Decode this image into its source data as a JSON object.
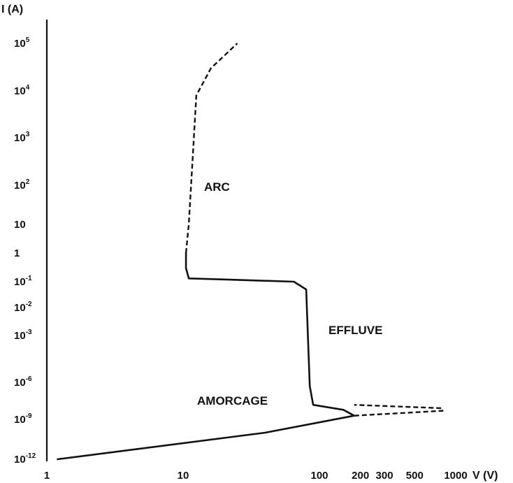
{
  "chart_data": {
    "type": "line",
    "title": "",
    "ylabel": "I (A)",
    "xlabel": "V (V)",
    "y_ticks": [
      {
        "base": "10",
        "exp": "5"
      },
      {
        "base": "10",
        "exp": "4"
      },
      {
        "base": "10",
        "exp": "3"
      },
      {
        "base": "10",
        "exp": "2"
      },
      {
        "base": "10",
        "exp": ""
      },
      {
        "base": "1",
        "exp": ""
      },
      {
        "base": "10",
        "exp": "-1"
      },
      {
        "base": "10",
        "exp": "-2"
      },
      {
        "base": "10",
        "exp": "-3"
      },
      {
        "base": "10",
        "exp": "-6"
      },
      {
        "base": "10",
        "exp": "-9"
      },
      {
        "base": "10",
        "exp": "-12"
      }
    ],
    "x_ticks": [
      "1",
      "10",
      "100",
      "200",
      "300",
      "500",
      "1000"
    ],
    "regions": [
      "ARC",
      "EFFLUVE",
      "AMORCAGE"
    ],
    "series": [
      {
        "style": "solid",
        "points": [
          [
            1.2,
            1e-12
          ],
          [
            40,
            1e-10
          ],
          [
            180,
            2e-09
          ],
          [
            150,
            6e-09
          ],
          [
            90,
            1.5e-08
          ],
          [
            85,
            5e-07
          ],
          [
            80,
            0.05
          ],
          [
            65,
            0.1
          ],
          [
            20,
            0.12
          ],
          [
            11,
            0.13
          ],
          [
            10.5,
            0.3
          ],
          [
            10.5,
            1
          ]
        ]
      },
      {
        "style": "dashed",
        "points": [
          [
            10.5,
            1
          ],
          [
            11,
            10
          ],
          [
            12,
            1000
          ],
          [
            12.5,
            8000
          ],
          [
            16,
            30000
          ],
          [
            25,
            100000
          ]
        ]
      },
      {
        "style": "dashed",
        "points": [
          [
            180,
            2e-09
          ],
          [
            800,
            5e-09
          ],
          [
            800,
            8e-09
          ],
          [
            180,
            1.5e-08
          ]
        ]
      }
    ]
  }
}
